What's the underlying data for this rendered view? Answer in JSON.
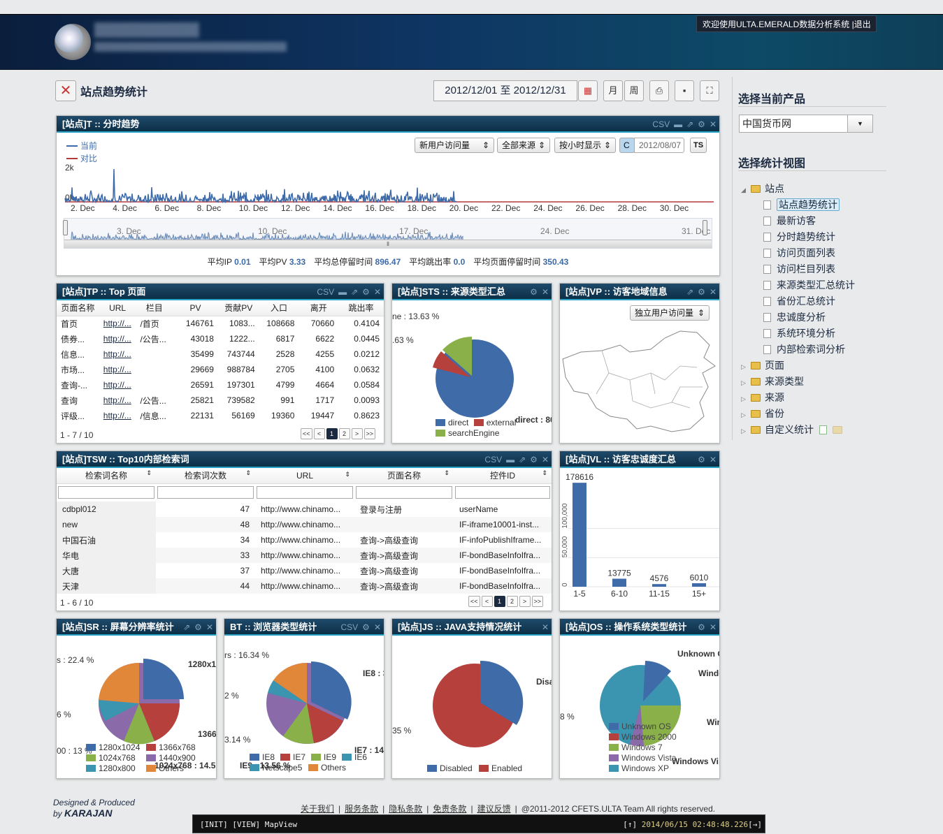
{
  "header": {
    "welcome": "欢迎使用ULTA.EMERALD数据分析系统 |",
    "logout": "退出"
  },
  "page": {
    "title": "站点趋势统计",
    "date_range": "2012/12/01 至 2012/12/31",
    "btn_month": "月",
    "btn_week": "周"
  },
  "colors": {
    "header_bg": "#0e3563",
    "panel_head": "#17405f",
    "accent": "#2ba3c6",
    "series_current": "#3d6aa8",
    "series_compare": "#b33a3a"
  },
  "trend": {
    "title": "[站点]T :: 分时趋势",
    "csv": "CSV",
    "legend": [
      "当前",
      "对比"
    ],
    "sel_metric": "新用户访问量",
    "sel_source": "全部来源",
    "sel_mode": "按小时显示",
    "c_btn": "C",
    "date": "2012/08/07",
    "ts_btn": "TS",
    "y_ticks": [
      "2k",
      "0k"
    ],
    "x_ticks": [
      "2. Dec",
      "4. Dec",
      "6. Dec",
      "8. Dec",
      "10. Dec",
      "12. Dec",
      "14. Dec",
      "16. Dec",
      "18. Dec",
      "20. Dec",
      "22. Dec",
      "24. Dec",
      "26. Dec",
      "28. Dec",
      "30. Dec"
    ],
    "nav_ticks": [
      "3. Dec",
      "10. Dec",
      "17. Dec",
      "24. Dec",
      "31. Dec"
    ],
    "stats": [
      {
        "label": "平均IP",
        "value": "0.01"
      },
      {
        "label": "平均PV",
        "value": "3.33"
      },
      {
        "label": "平均总停留时间",
        "value": "896.47"
      },
      {
        "label": "平均跳出率",
        "value": "0.0"
      },
      {
        "label": "平均页面停留时间",
        "value": "350.43"
      }
    ]
  },
  "top_pages": {
    "title": "[站点]TP :: Top 页面",
    "csv": "CSV",
    "columns": [
      "页面名称",
      "URL",
      "栏目",
      "PV",
      "贡献PV",
      "入口",
      "离开",
      "跳出率"
    ],
    "rows": [
      [
        "首页",
        "http://...",
        "/首页",
        "146761",
        "1083...",
        "108668",
        "70660",
        "0.4104"
      ],
      [
        "债券...",
        "http://...",
        "/公告...",
        "43018",
        "1222...",
        "6817",
        "6622",
        "0.0445"
      ],
      [
        "信息...",
        "http://...",
        "",
        "35499",
        "743744",
        "2528",
        "4255",
        "0.0212"
      ],
      [
        "市场...",
        "http://...",
        "",
        "29669",
        "988784",
        "2705",
        "4100",
        "0.0632"
      ],
      [
        "查询-...",
        "http://...",
        "",
        "26591",
        "197301",
        "4799",
        "4664",
        "0.0584"
      ],
      [
        "查询",
        "http://...",
        "/公告...",
        "25821",
        "739582",
        "991",
        "1717",
        "0.0093"
      ],
      [
        "评级...",
        "http://...",
        "/信息...",
        "22131",
        "56169",
        "19360",
        "19447",
        "0.8623"
      ]
    ],
    "pager": "1 - 7 / 10",
    "pages": [
      "<<",
      "<",
      "1",
      "2",
      ">",
      ">>"
    ]
  },
  "source": {
    "title": "[站点]STS :: 来源类型汇总",
    "labels": [
      "ne : 13.63 %",
      ".63 %",
      "direct : 80"
    ],
    "legend": [
      "direct",
      "external",
      "searchEngine"
    ]
  },
  "region": {
    "title": "[站点]VP :: 访客地域信息",
    "select": "独立用户访问量"
  },
  "search_words": {
    "title": "[站点]TSW :: Top10内部检索词",
    "csv": "CSV",
    "columns": [
      "检索词名称",
      "检索词次数",
      "URL",
      "页面名称",
      "控件ID"
    ],
    "rows": [
      [
        "cdbpl012",
        "47",
        "http://www.chinamo...",
        "登录与注册",
        "userName"
      ],
      [
        "new",
        "48",
        "http://www.chinamo...",
        "",
        "IF-iframe10001-inst..."
      ],
      [
        "中国石油",
        "34",
        "http://www.chinamo...",
        "查询->高级查询",
        "IF-infoPublishIframe..."
      ],
      [
        "华电",
        "33",
        "http://www.chinamo...",
        "查询->高级查询",
        "IF-bondBaseInfoIfra..."
      ],
      [
        "大唐",
        "37",
        "http://www.chinamo...",
        "查询->高级查询",
        "IF-bondBaseInfoIfra..."
      ],
      [
        "天津",
        "44",
        "http://www.chinamo...",
        "查询->高级查询",
        "IF-bondBaseInfoIfra..."
      ]
    ],
    "pager": "1 - 6 / 10",
    "pages": [
      "<<",
      "<",
      "1",
      "2",
      ">",
      ">>"
    ]
  },
  "loyalty": {
    "title": "[站点]VL :: 访客忠诚度汇总",
    "y_ticks": [
      "0",
      "50,000",
      "100,000"
    ]
  },
  "resolution": {
    "title": "[站点]SR :: 屏幕分辨率统计",
    "labels": [
      "s : 22.4 %",
      "1280x1",
      "6 %",
      "1366",
      "00 : 13 %",
      "1024x768 : 14.5"
    ],
    "legend": [
      "1280x1024",
      "1366x768",
      "1024x768",
      "1440x900",
      "1280x800",
      "Others"
    ]
  },
  "browser": {
    "title": "BT :: 浏览器类型统计",
    "csv": "CSV",
    "labels": [
      "rs : 16.34 %",
      "IE8 : 3",
      "2 %",
      "3.14 %",
      "IE7 : 14.",
      "IE9 : 13.56 %"
    ],
    "legend": [
      "IE8",
      "IE7",
      "IE9",
      "IE6",
      "Netscape5",
      "Others"
    ]
  },
  "java": {
    "title": "[站点]JS :: JAVA支持情况统计",
    "labels": [
      "Disa",
      "35 %"
    ],
    "legend": [
      "Disabled",
      "Enabled"
    ]
  },
  "os": {
    "title": "[站点]OS :: 操作系统类型统计",
    "labels": [
      "Unknown O",
      "Windo",
      "Win",
      "8 %",
      "Windows Vi"
    ],
    "legend": [
      "Unknown OS",
      "Windows 2000",
      "Windows 7",
      "Windows Vista",
      "Windows XP"
    ]
  },
  "sidebar": {
    "product_heading": "选择当前产品",
    "product": "中国货币网",
    "view_heading": "选择统计视图",
    "root": "站点",
    "children": [
      "站点趋势统计",
      "最新访客",
      "分时趋势统计",
      "访问页面列表",
      "访问栏目列表",
      "来源类型汇总统计",
      "省份汇总统计",
      "忠诚度分析",
      "系统环境分析",
      "内部检索词分析"
    ],
    "folders": [
      "页面",
      "来源类型",
      "来源",
      "省份",
      "自定义统计"
    ]
  },
  "footer": {
    "designed": "Designed & Produced",
    "by": "by",
    "brand": "KARAJAN",
    "links": [
      "关于我们",
      "服务条款",
      "隐私条款",
      "免责条款",
      "建议反馈"
    ],
    "copyright": "@2011-2012 CFETS.ULTA Team All rights reserved."
  },
  "status": {
    "log": "[INIT] [VIEW] MapView",
    "time": "2014/06/15 02:48:48.226",
    "up": "[↑]",
    "right": "[→]"
  },
  "chart_data": [
    {
      "type": "line",
      "title": "",
      "series": [
        {
          "name": "当前"
        },
        {
          "name": "对比"
        }
      ],
      "x": [
        "2. Dec",
        "4. Dec",
        "6. Dec",
        "8. Dec",
        "10. Dec",
        "12. Dec",
        "14. Dec",
        "16. Dec",
        "18. Dec",
        "20. Dec",
        "22. Dec",
        "24. Dec",
        "26. Dec",
        "28. Dec",
        "30. Dec"
      ],
      "ylim": [
        0,
        2000
      ]
    },
    {
      "type": "bar",
      "categories": [
        "1-5",
        "6-10",
        "11-15",
        "15+"
      ],
      "values": [
        178616,
        13775,
        4576,
        6010
      ]
    },
    {
      "type": "pie",
      "series": [
        {
          "name": "direct",
          "value": 80
        },
        {
          "name": "external",
          "value": 6.37
        },
        {
          "name": "searchEngine",
          "value": 13.63
        }
      ]
    }
  ]
}
